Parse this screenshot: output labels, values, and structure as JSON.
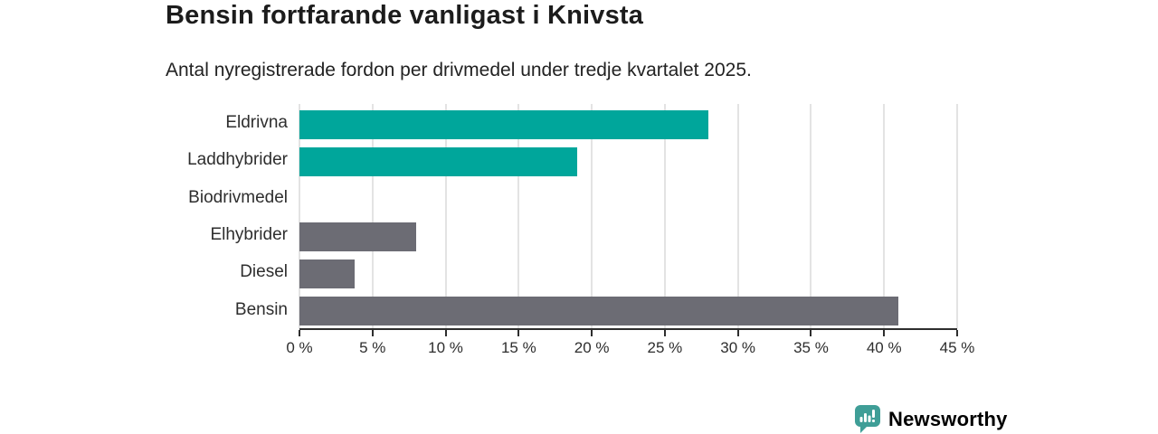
{
  "header": {
    "title": "Bensin fortfarande vanligast i Knivsta",
    "subtitle": "Antal nyregistrerade fordon per drivmedel under tredje kvartalet 2025."
  },
  "chart_data": {
    "type": "bar",
    "orientation": "horizontal",
    "title": "Bensin fortfarande vanligast i Knivsta",
    "subtitle": "Antal nyregistrerade fordon per drivmedel under tredje kvartalet 2025.",
    "categories": [
      "Eldrivna",
      "Laddhybrider",
      "Biodrivmedel",
      "Elhybrider",
      "Diesel",
      "Bensin"
    ],
    "values": [
      28,
      19,
      0,
      8,
      3.8,
      41
    ],
    "unit": "%",
    "bar_colors": [
      "#00a69b",
      "#00a69b",
      "#00a69b",
      "#6c6c74",
      "#6c6c74",
      "#6c6c74"
    ],
    "xlim": [
      0,
      45
    ],
    "x_ticks": [
      0,
      5,
      10,
      15,
      20,
      25,
      30,
      35,
      40,
      45
    ],
    "x_tick_labels": [
      "0 %",
      "5 %",
      "10 %",
      "15 %",
      "20 %",
      "25 %",
      "30 %",
      "35 %",
      "40 %",
      "45 %"
    ],
    "xlabel": "",
    "ylabel": "",
    "grid": true,
    "legend": "none"
  },
  "colors": {
    "accent_teal": "#00a69b",
    "neutral_gray": "#6c6c74",
    "gridline": "#e3e3e3",
    "axis": "#2e2e2e",
    "text": "#1c1c1c",
    "logo_teal": "#3f9e97",
    "logo_text_teal": "#35918e"
  },
  "branding": {
    "logo_text": "Newsworthy",
    "logo_icon": "newsworthy-bubble-barchart-icon"
  }
}
